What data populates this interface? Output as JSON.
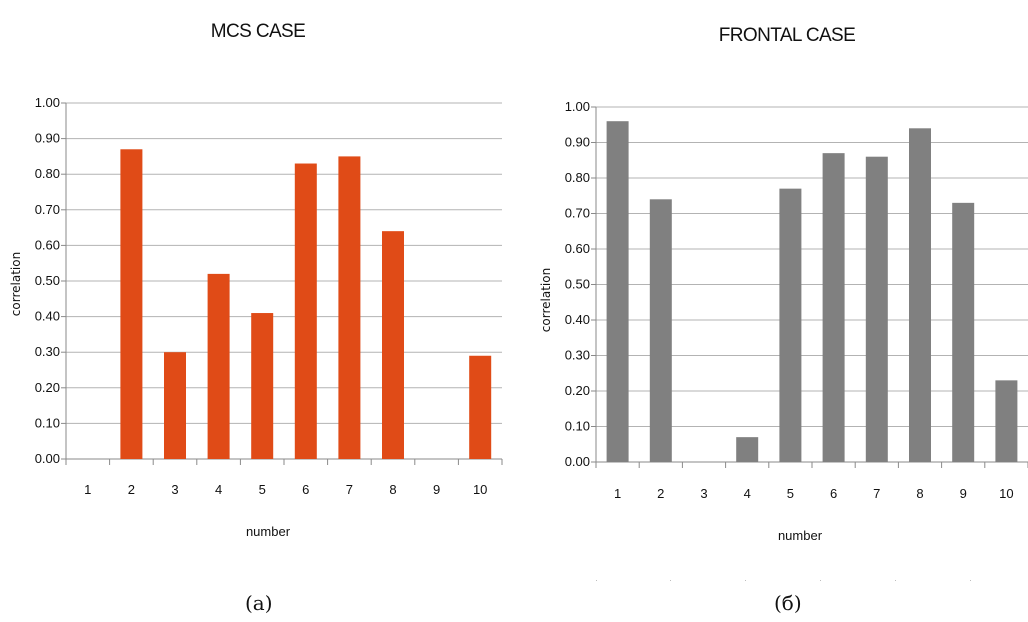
{
  "colors": {
    "left_bars": "#e04b17",
    "right_bars": "#808080",
    "grid": "#b3b3b3"
  },
  "captions": {
    "left": "(a)",
    "right": "(б)"
  },
  "chart_data": [
    {
      "type": "bar",
      "title": "MCS CASE",
      "xlabel": "number",
      "ylabel": "correlation",
      "ylim": [
        0,
        1
      ],
      "yticks": [
        "0.00",
        "0.10",
        "0.20",
        "0.30",
        "0.40",
        "0.50",
        "0.60",
        "0.70",
        "0.80",
        "0.90",
        "1.00"
      ],
      "categories": [
        "1",
        "2",
        "3",
        "4",
        "5",
        "6",
        "7",
        "8",
        "9",
        "10"
      ],
      "values": [
        0,
        0.87,
        0.3,
        0.52,
        0.41,
        0.83,
        0.85,
        0.64,
        0,
        0.29
      ],
      "grid": true,
      "color": "#e04b17"
    },
    {
      "type": "bar",
      "title": "FRONTAL CASE",
      "xlabel": "number",
      "ylabel": "correlation",
      "ylim": [
        0,
        1
      ],
      "yticks": [
        "0.00",
        "0.10",
        "0.20",
        "0.30",
        "0.40",
        "0.50",
        "0.60",
        "0.70",
        "0.80",
        "0.90",
        "1.00"
      ],
      "categories": [
        "1",
        "2",
        "3",
        "4",
        "5",
        "6",
        "7",
        "8",
        "9",
        "10"
      ],
      "values": [
        0.96,
        0.74,
        0,
        0.07,
        0.77,
        0.87,
        0.86,
        0.94,
        0.73,
        0.23
      ],
      "grid": true,
      "color": "#808080"
    }
  ]
}
